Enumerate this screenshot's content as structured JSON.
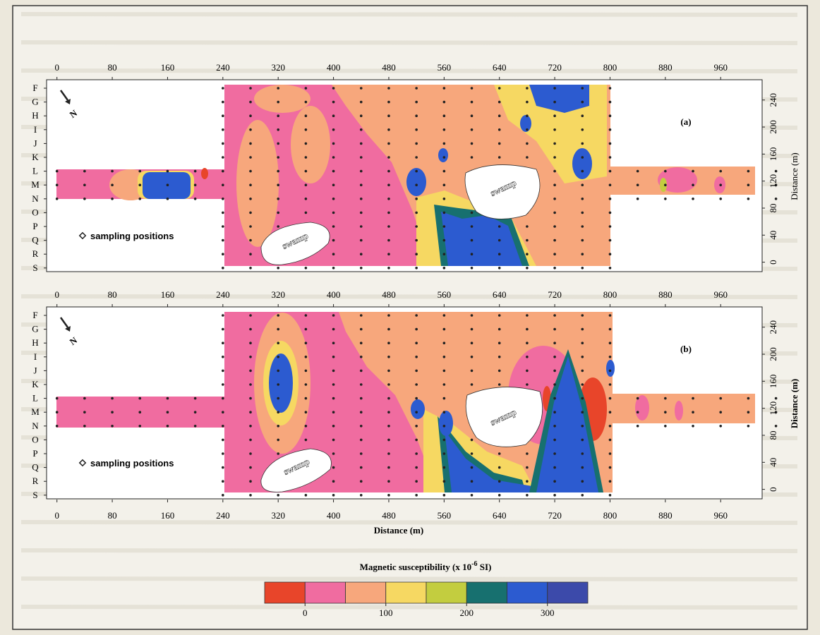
{
  "figure": {
    "panels": [
      {
        "label": "(a)",
        "north": "N",
        "legend": "sampling positions",
        "swamp_labels": [
          "swamp",
          "swamp"
        ],
        "rows": [
          "F",
          "G",
          "H",
          "I",
          "J",
          "K",
          "L",
          "M",
          "N",
          "O",
          "P",
          "Q",
          "R",
          "S"
        ],
        "xticks": [
          0,
          80,
          160,
          240,
          320,
          400,
          480,
          560,
          640,
          720,
          800,
          880,
          960
        ],
        "yticks": [
          0,
          40,
          80,
          120,
          160,
          200,
          240
        ],
        "y_axis_label": "Distance (m)"
      },
      {
        "label": "(b)",
        "north": "N",
        "legend": "sampling positions",
        "swamp_labels": [
          "swamp",
          "swamp"
        ],
        "rows": [
          "F",
          "G",
          "H",
          "I",
          "J",
          "K",
          "L",
          "M",
          "N",
          "O",
          "P",
          "Q",
          "R",
          "S"
        ],
        "xticks": [
          0,
          80,
          160,
          240,
          320,
          400,
          480,
          560,
          640,
          720,
          800,
          880,
          960
        ],
        "yticks": [
          0,
          40,
          80,
          120,
          160,
          200,
          240
        ],
        "y_axis_label": "Distance (m)"
      }
    ],
    "xlim": [
      -15,
      1020
    ],
    "ylim": [
      -14,
      270
    ],
    "x_axis_label": "Distance (m)",
    "colorbar": {
      "title": "Magnetic susceptibility (x 10",
      "title_sup": "-6",
      "title_end": " SI)",
      "colors": [
        "#e8452a",
        "#f06ca0",
        "#f7a77c",
        "#f6d862",
        "#c3cd3f",
        "#17706f",
        "#2c5bd0",
        "#3c4aaa"
      ],
      "clim": [
        -50,
        350
      ],
      "ticks": [
        0,
        100,
        200,
        300
      ]
    }
  }
}
